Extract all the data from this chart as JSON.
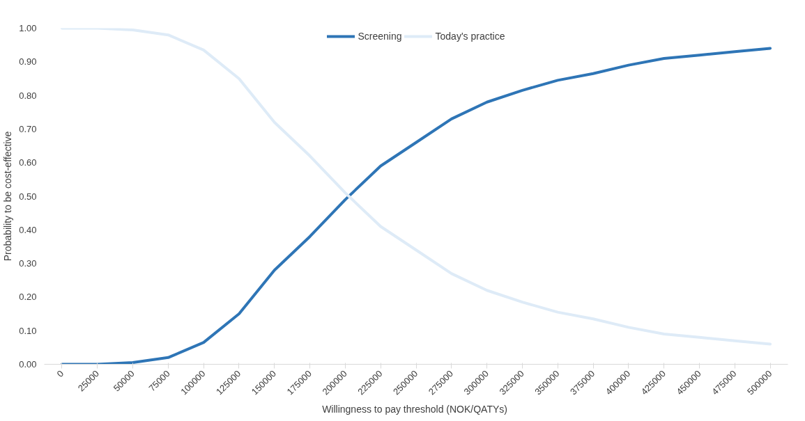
{
  "chart_data": {
    "type": "line",
    "xlabel": "Willingness to pay threshold  (NOK/QATYs)",
    "ylabel": "Probability to be cost-effective",
    "categories": [
      "0",
      "25000",
      "50000",
      "75000",
      "100000",
      "125000",
      "150000",
      "175000",
      "200000",
      "225000",
      "250000",
      "275000",
      "300000",
      "325000",
      "350000",
      "375000",
      "400000",
      "425000",
      "450000",
      "475000",
      "500000"
    ],
    "series": [
      {
        "name": "Screening",
        "color": "#2e75b6",
        "values": [
          0.0,
          0.0,
          0.005,
          0.02,
          0.065,
          0.15,
          0.28,
          0.38,
          0.49,
          0.59,
          0.66,
          0.73,
          0.78,
          0.815,
          0.845,
          0.865,
          0.89,
          0.91,
          0.92,
          0.93,
          0.94
        ]
      },
      {
        "name": "Today's practice",
        "color": "#deebf7",
        "values": [
          1.0,
          1.0,
          0.995,
          0.98,
          0.935,
          0.85,
          0.72,
          0.62,
          0.51,
          0.41,
          0.34,
          0.27,
          0.22,
          0.185,
          0.155,
          0.135,
          0.11,
          0.09,
          0.08,
          0.07,
          0.06
        ]
      }
    ],
    "ylim": [
      0,
      1.0
    ],
    "yticks": [
      {
        "value": 0,
        "label": "0.00"
      },
      {
        "value": 0.1,
        "label": "0.10"
      },
      {
        "value": 0.2,
        "label": "0.20"
      },
      {
        "value": 0.3,
        "label": "0.30"
      },
      {
        "value": 0.4,
        "label": "0.40"
      },
      {
        "value": 0.5,
        "label": "0.50"
      },
      {
        "value": 0.6,
        "label": "0.60"
      },
      {
        "value": 0.7,
        "label": "0.70"
      },
      {
        "value": 0.8,
        "label": "0.80"
      },
      {
        "value": 0.9,
        "label": "0.90"
      },
      {
        "value": 1.0,
        "label": "1.00"
      }
    ],
    "grid": false,
    "legend": "top",
    "line_style": "solid"
  }
}
